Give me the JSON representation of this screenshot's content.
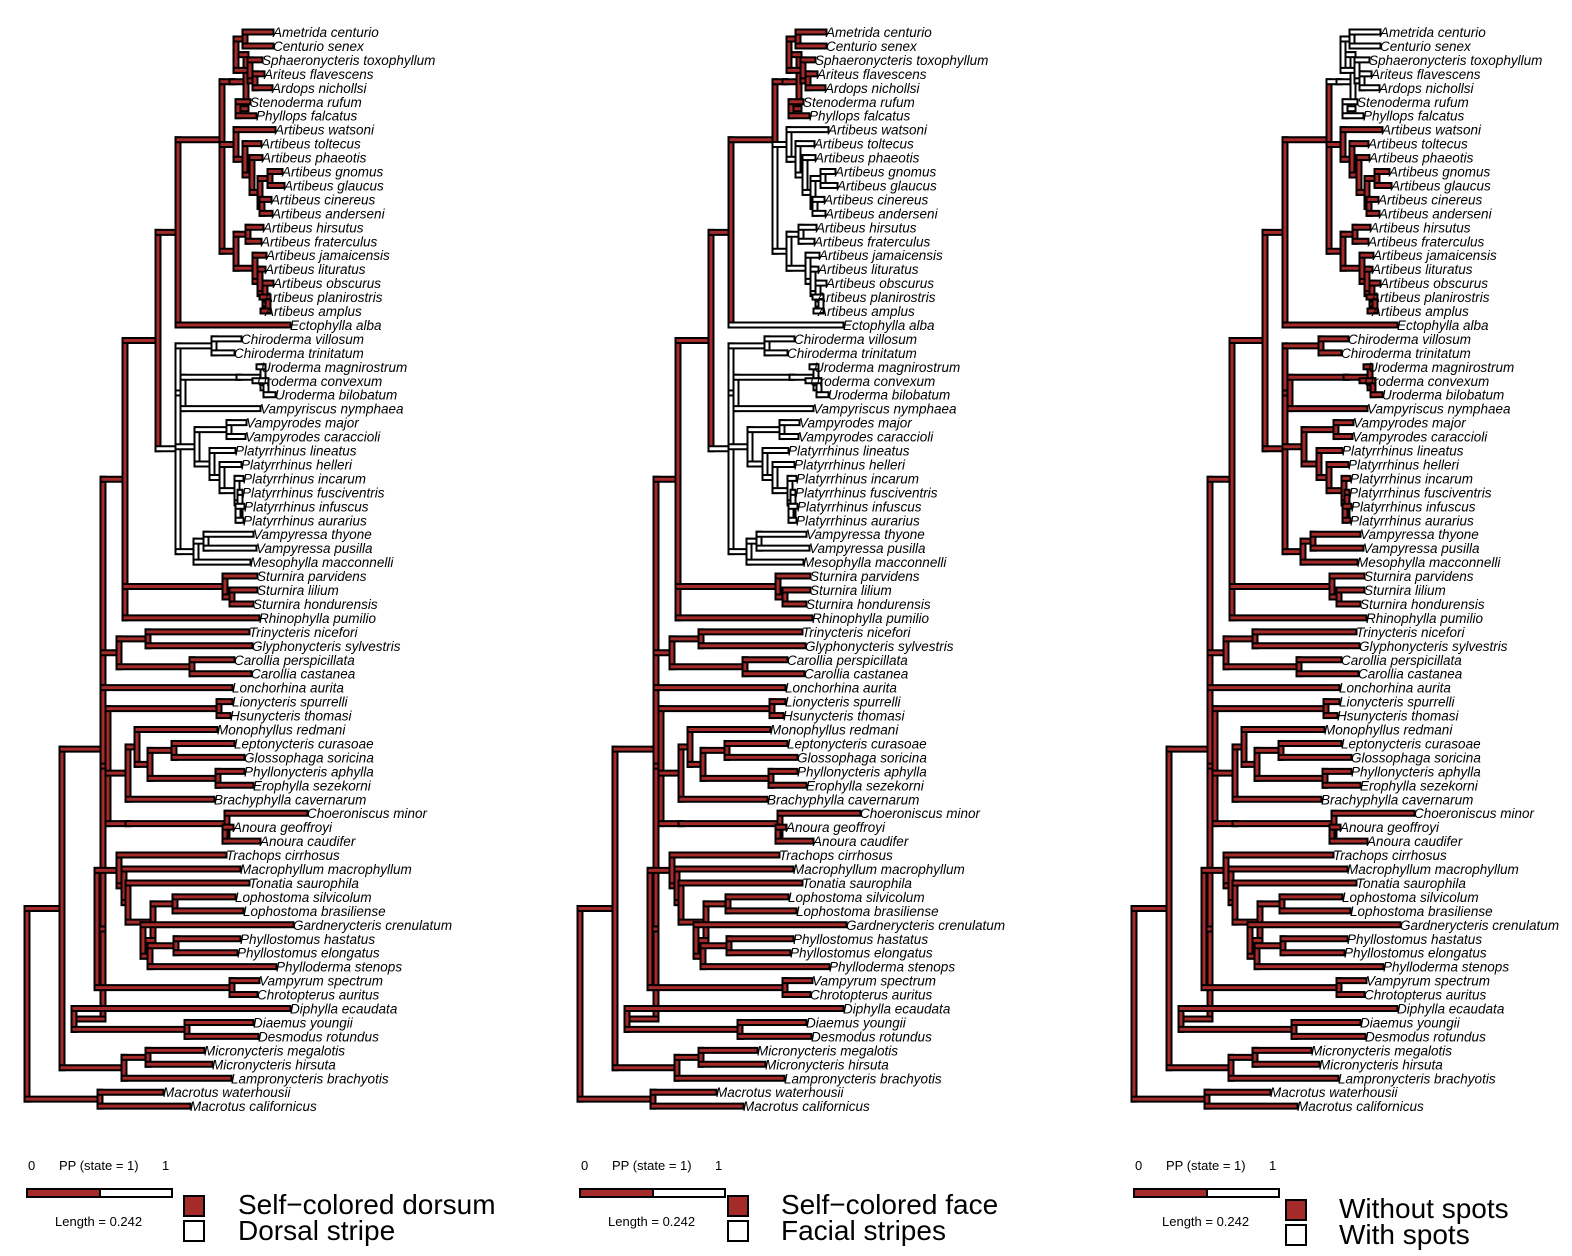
{
  "colors": {
    "state1": "#a52a2a",
    "state0": "#ffffff",
    "outline": "#000000"
  },
  "tips": [
    "Ametrida centurio",
    "Centurio senex",
    "Sphaeronycteris toxophyllum",
    "Ariteus flavescens",
    "Ardops nichollsi",
    "Stenoderma rufum",
    "Phyllops falcatus",
    "Artibeus watsoni",
    "Artibeus toltecus",
    "Artibeus phaeotis",
    "Artibeus gnomus",
    "Artibeus glaucus",
    "Artibeus cinereus",
    "Artibeus anderseni",
    "Artibeus hirsutus",
    "Artibeus fraterculus",
    "Artibeus jamaicensis",
    "Artibeus lituratus",
    "Artibeus obscurus",
    "Artibeus planirostris",
    "Artibeus amplus",
    "Ectophylla alba",
    "Chiroderma villosum",
    "Chiroderma trinitatum",
    "Uroderma magnirostrum",
    "Uroderma convexum",
    "Uroderma bilobatum",
    "Vampyriscus nymphaea",
    "Vampyrodes major",
    "Vampyrodes caraccioli",
    "Platyrrhinus lineatus",
    "Platyrrhinus helleri",
    "Platyrrhinus incarum",
    "Platyrrhinus fusciventris",
    "Platyrrhinus infuscus",
    "Platyrrhinus aurarius",
    "Vampyressa thyone",
    "Vampyressa pusilla",
    "Mesophylla macconnelli",
    "Sturnira parvidens",
    "Sturnira lilium",
    "Sturnira hondurensis",
    "Rhinophylla pumilio",
    "Trinycteris nicefori",
    "Glyphonycteris sylvestris",
    "Carollia perspicillata",
    "Carollia castanea",
    "Lonchorhina aurita",
    "Lionycteris spurrelli",
    "Hsunycteris thomasi",
    "Monophyllus redmani",
    "Leptonycteris curasoae",
    "Glossophaga soricina",
    "Phyllonycteris aphylla",
    "Erophylla sezekorni",
    "Brachyphylla cavernarum",
    "Choeroniscus minor",
    "Anoura geoffroyi",
    "Anoura caudifer",
    "Trachops cirrhosus",
    "Macrophyllum macrophyllum",
    "Tonatia saurophila",
    "Lophostoma silvicolum",
    "Lophostoma brasiliense",
    "Gardnerycteris crenulatum",
    "Phyllostomus hastatus",
    "Phyllostomus elongatus",
    "Phylloderma stenops",
    "Vampyrum spectrum",
    "Chrotopterus auritus",
    "Diphylla ecaudata",
    "Diaemus youngii",
    "Desmodus rotundus",
    "Micronycteris megalotis",
    "Micronycteris hirsuta",
    "Lampronycteris brachyotis",
    "Macrotus waterhousii",
    "Macrotus californicus"
  ],
  "panels": [
    {
      "trait": "dorsum",
      "pp_axis_min": "0",
      "pp_axis_label": "PP (state = 1)",
      "pp_axis_max": "1",
      "length_label": "Length = 0.242",
      "state1_label": "Self−colored dorsum",
      "state0_label": "Dorsal stripe",
      "white_clades": [
        "Chiroderma villosum..Mesophylla macconnelli"
      ],
      "pink_partial": [
        "Trinycteris nicefori"
      ]
    },
    {
      "trait": "face",
      "pp_axis_min": "0",
      "pp_axis_label": "PP (state = 1)",
      "pp_axis_max": "1",
      "length_label": "Length = 0.242",
      "state1_label": "Self−colored face",
      "state0_label": "Facial stripes",
      "white_clades": [
        "Artibeus watsoni..Mesophylla macconnelli"
      ],
      "pink_partial": [
        "Artibeus obscurus",
        "Artibeus planirostris",
        "Artibeus amplus",
        "Platyrrhinus infuscus",
        "Platyrrhinus aurarius"
      ]
    },
    {
      "trait": "spots",
      "pp_axis_min": "0",
      "pp_axis_label": "PP (state = 1)",
      "pp_axis_max": "1",
      "length_label": "Length = 0.242",
      "state1_label": "Without spots",
      "state0_label": "With spots",
      "white_clades": [
        "Ametrida centurio..Phyllops falcatus"
      ],
      "pink_partial": []
    }
  ]
}
